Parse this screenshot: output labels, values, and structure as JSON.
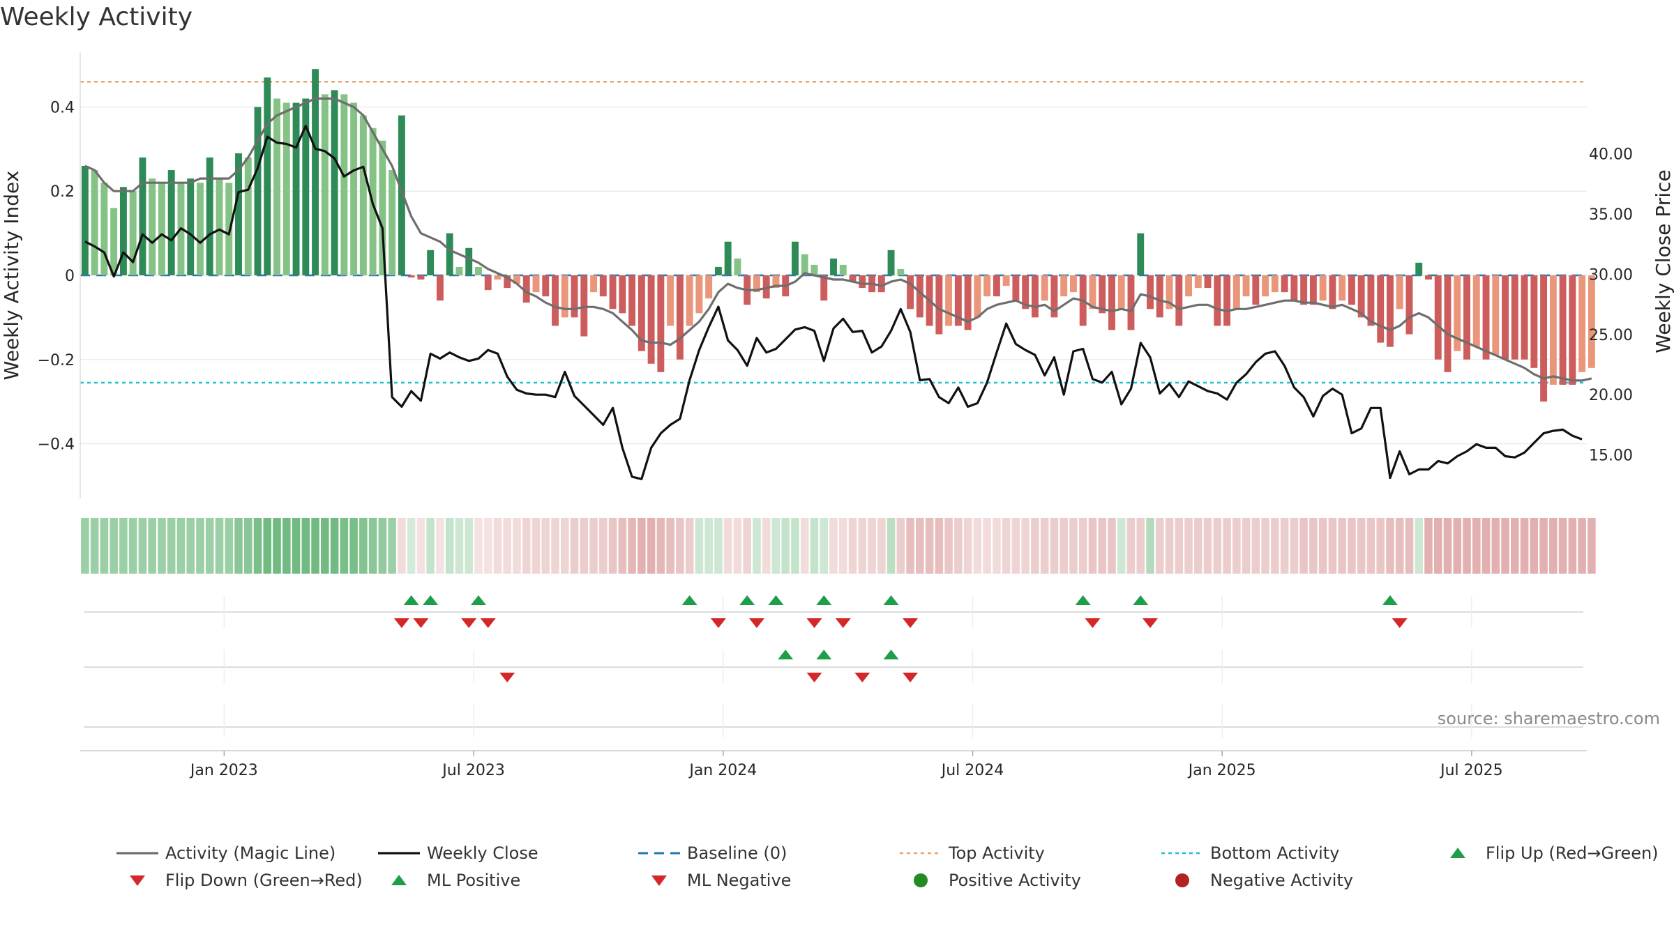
{
  "title": "Weekly Activity",
  "source": "source: sharemaestro.com",
  "colors": {
    "dark_green": "#2e8b57",
    "light_green": "#85c285",
    "dark_red": "#cd5c5c",
    "light_red": "#e9967a",
    "magic_line": "#6e6e6e",
    "close_line": "#111111",
    "baseline": "#1f77b4",
    "top_line": "#e3a56a",
    "bottom_line": "#19c4cf",
    "marker_up": "#1f9e4a",
    "marker_down": "#d62728",
    "pos_dot": "#228b22",
    "neg_dot": "#b22222"
  },
  "chart_data": {
    "type": "bar+line",
    "title": "Weekly Activity",
    "ylabel_left": "Weekly Activity Index",
    "ylabel_right": "Weekly Close Price",
    "ylim_left": [
      -0.53,
      0.53
    ],
    "ylim_right": [
      11.4,
      48.4
    ],
    "yticks_left": [
      "0.4",
      "0.2",
      "0",
      "−0.2",
      "−0.4"
    ],
    "yticks_left_values": [
      0.4,
      0.2,
      0,
      -0.2,
      -0.4
    ],
    "yticks_right": [
      "40.00",
      "35.00",
      "30.00",
      "25.00",
      "20.00",
      "15.00"
    ],
    "yticks_right_values": [
      40,
      35,
      30,
      25,
      20,
      15
    ],
    "xticks": [
      "Jan 2023",
      "Jul 2023",
      "Jan 2024",
      "Jul 2024",
      "Jan 2025",
      "Jul 2025"
    ],
    "xticks_week_index": [
      14.5,
      40.5,
      66.5,
      92.5,
      118.5,
      144.5
    ],
    "weeks_count": 157,
    "top_activity": 0.46,
    "bottom_activity": -0.255,
    "baseline": 0,
    "activity": [
      0.26,
      0.25,
      0.22,
      0.16,
      0.21,
      0.2,
      0.28,
      0.23,
      0.22,
      0.25,
      0.22,
      0.23,
      0.22,
      0.28,
      0.23,
      0.22,
      0.29,
      0.28,
      0.4,
      0.47,
      0.42,
      0.41,
      0.41,
      0.42,
      0.49,
      0.43,
      0.44,
      0.43,
      0.41,
      0.38,
      0.35,
      0.32,
      0.25,
      0.38,
      -0.005,
      -0.01,
      0.06,
      -0.06,
      0.1,
      0.02,
      0.065,
      0.02,
      -0.035,
      -0.01,
      -0.03,
      -0.02,
      -0.065,
      -0.04,
      -0.05,
      -0.12,
      -0.1,
      -0.1,
      -0.145,
      -0.04,
      -0.05,
      -0.08,
      -0.09,
      -0.12,
      -0.18,
      -0.21,
      -0.23,
      -0.12,
      -0.2,
      -0.12,
      -0.09,
      -0.055,
      0.02,
      0.08,
      0.04,
      -0.07,
      -0.04,
      -0.055,
      -0.03,
      -0.05,
      0.08,
      0.05,
      0.025,
      -0.06,
      0.04,
      0.025,
      -0.015,
      -0.03,
      -0.04,
      -0.04,
      0.06,
      0.015,
      -0.08,
      -0.1,
      -0.12,
      -0.14,
      -0.12,
      -0.12,
      -0.13,
      -0.1,
      -0.05,
      -0.05,
      -0.025,
      -0.06,
      -0.08,
      -0.1,
      -0.06,
      -0.1,
      -0.05,
      -0.04,
      -0.12,
      -0.08,
      -0.09,
      -0.13,
      -0.08,
      -0.13,
      0.1,
      -0.08,
      -0.1,
      -0.08,
      -0.12,
      -0.05,
      -0.03,
      -0.03,
      -0.12,
      -0.12,
      -0.08,
      -0.05,
      -0.07,
      -0.05,
      -0.04,
      -0.04,
      -0.06,
      -0.07,
      -0.07,
      -0.06,
      -0.08,
      -0.06,
      -0.07,
      -0.1,
      -0.12,
      -0.16,
      -0.17,
      -0.08,
      -0.14,
      0.03,
      -0.01,
      -0.2,
      -0.23,
      -0.18,
      -0.2,
      -0.17,
      -0.2,
      -0.19,
      -0.2,
      -0.2,
      -0.2,
      -0.22,
      -0.3,
      -0.26,
      -0.26,
      -0.26,
      -0.23,
      -0.22
    ],
    "magic_line": [
      0.26,
      0.25,
      0.22,
      0.2,
      0.2,
      0.2,
      0.22,
      0.22,
      0.22,
      0.22,
      0.22,
      0.22,
      0.23,
      0.23,
      0.23,
      0.23,
      0.25,
      0.28,
      0.32,
      0.36,
      0.38,
      0.39,
      0.4,
      0.41,
      0.42,
      0.42,
      0.42,
      0.41,
      0.4,
      0.38,
      0.34,
      0.3,
      0.26,
      0.2,
      0.14,
      0.1,
      0.09,
      0.08,
      0.06,
      0.05,
      0.04,
      0.03,
      0.015,
      0.005,
      -0.005,
      -0.02,
      -0.04,
      -0.05,
      -0.065,
      -0.075,
      -0.08,
      -0.08,
      -0.075,
      -0.075,
      -0.08,
      -0.09,
      -0.11,
      -0.13,
      -0.155,
      -0.16,
      -0.16,
      -0.165,
      -0.15,
      -0.13,
      -0.11,
      -0.08,
      -0.04,
      -0.02,
      -0.03,
      -0.035,
      -0.035,
      -0.03,
      -0.025,
      -0.025,
      -0.015,
      0.005,
      0.0,
      -0.005,
      -0.01,
      -0.01,
      -0.015,
      -0.02,
      -0.02,
      -0.025,
      -0.015,
      -0.01,
      -0.02,
      -0.04,
      -0.06,
      -0.08,
      -0.09,
      -0.1,
      -0.11,
      -0.1,
      -0.08,
      -0.07,
      -0.065,
      -0.06,
      -0.07,
      -0.075,
      -0.07,
      -0.085,
      -0.07,
      -0.055,
      -0.06,
      -0.075,
      -0.08,
      -0.085,
      -0.08,
      -0.085,
      -0.045,
      -0.05,
      -0.06,
      -0.065,
      -0.08,
      -0.075,
      -0.07,
      -0.07,
      -0.08,
      -0.085,
      -0.08,
      -0.08,
      -0.075,
      -0.07,
      -0.065,
      -0.06,
      -0.06,
      -0.065,
      -0.065,
      -0.07,
      -0.075,
      -0.07,
      -0.08,
      -0.09,
      -0.11,
      -0.12,
      -0.13,
      -0.12,
      -0.1,
      -0.09,
      -0.1,
      -0.12,
      -0.14,
      -0.15,
      -0.16,
      -0.17,
      -0.18,
      -0.19,
      -0.2,
      -0.21,
      -0.22,
      -0.235,
      -0.245,
      -0.24,
      -0.245,
      -0.25,
      -0.25,
      -0.245
    ],
    "weekly_close": [
      32.7,
      32.3,
      31.8,
      29.8,
      31.8,
      31.0,
      33.3,
      32.6,
      33.3,
      32.8,
      33.8,
      33.3,
      32.6,
      33.3,
      33.7,
      33.3,
      36.8,
      37.0,
      38.8,
      41.4,
      40.9,
      40.8,
      40.5,
      42.3,
      40.4,
      40.2,
      39.6,
      38.1,
      38.6,
      38.9,
      35.8,
      33.8,
      19.8,
      19.0,
      20.3,
      19.5,
      23.4,
      23.0,
      23.5,
      23.1,
      22.8,
      23.0,
      23.7,
      23.4,
      21.5,
      20.4,
      20.1,
      20.0,
      20.0,
      19.8,
      21.9,
      19.9,
      19.1,
      18.3,
      17.5,
      18.9,
      15.6,
      13.2,
      13.0,
      15.6,
      16.8,
      17.5,
      18.0,
      21.2,
      23.7,
      25.6,
      27.3,
      24.5,
      23.7,
      22.4,
      24.7,
      23.5,
      23.8,
      24.6,
      25.4,
      25.6,
      25.3,
      22.8,
      25.5,
      26.3,
      25.2,
      25.3,
      23.5,
      24.0,
      25.3,
      27.1,
      25.2,
      21.2,
      21.3,
      19.8,
      19.3,
      20.6,
      19.0,
      19.3,
      21.0,
      23.5,
      25.9,
      24.2,
      23.7,
      23.3,
      21.6,
      23.1,
      20.0,
      23.6,
      23.8,
      21.3,
      21.0,
      21.9,
      19.2,
      20.5,
      24.3,
      23.1,
      20.1,
      20.9,
      19.8,
      21.1,
      20.7,
      20.3,
      20.1,
      19.6,
      21.0,
      21.7,
      22.7,
      23.4,
      23.6,
      22.4,
      20.6,
      19.8,
      18.2,
      19.9,
      20.5,
      20.0,
      16.8,
      17.2,
      18.9,
      18.9,
      13.1,
      15.3,
      13.4,
      13.8,
      13.8,
      14.5,
      14.3,
      14.9,
      15.3,
      15.9,
      15.6,
      15.6,
      14.9,
      14.8,
      15.2,
      16.0,
      16.8,
      17.0,
      17.1,
      16.6,
      16.3
    ],
    "band_strength": [
      0.6,
      0.6,
      0.6,
      0.6,
      0.6,
      0.6,
      0.6,
      0.6,
      0.6,
      0.6,
      0.6,
      0.6,
      0.6,
      0.6,
      0.6,
      0.6,
      0.7,
      0.7,
      0.8,
      0.85,
      0.85,
      0.85,
      0.85,
      0.85,
      0.85,
      0.85,
      0.85,
      0.8,
      0.8,
      0.75,
      0.7,
      0.65,
      0.6,
      -0.25,
      0.25,
      -0.2,
      0.35,
      -0.2,
      0.35,
      0.3,
      0.3,
      -0.2,
      -0.2,
      -0.25,
      -0.25,
      -0.25,
      -0.3,
      -0.3,
      -0.3,
      -0.3,
      -0.3,
      -0.35,
      -0.35,
      -0.35,
      -0.35,
      -0.4,
      -0.45,
      -0.5,
      -0.55,
      -0.55,
      -0.5,
      -0.45,
      -0.4,
      -0.35,
      0.3,
      0.3,
      0.3,
      -0.25,
      -0.25,
      -0.3,
      0.3,
      -0.25,
      0.3,
      0.35,
      0.35,
      -0.25,
      0.35,
      0.3,
      -0.25,
      -0.25,
      -0.3,
      -0.3,
      -0.3,
      -0.3,
      0.4,
      -0.35,
      -0.45,
      -0.45,
      -0.45,
      -0.45,
      -0.4,
      -0.35,
      -0.3,
      -0.25,
      -0.25,
      -0.25,
      -0.3,
      -0.3,
      -0.3,
      -0.35,
      -0.35,
      -0.35,
      -0.35,
      -0.35,
      -0.35,
      -0.4,
      -0.4,
      -0.4,
      0.3,
      -0.35,
      -0.35,
      0.45,
      -0.35,
      -0.35,
      -0.35,
      -0.35,
      -0.35,
      -0.35,
      -0.35,
      -0.35,
      -0.35,
      -0.35,
      -0.35,
      -0.35,
      -0.35,
      -0.35,
      -0.35,
      -0.4,
      -0.4,
      -0.4,
      -0.4,
      -0.4,
      -0.4,
      -0.4,
      -0.4,
      -0.4,
      -0.45,
      -0.45,
      -0.45,
      0.3,
      -0.55,
      -0.55,
      -0.55,
      -0.55,
      -0.55,
      -0.55,
      -0.55,
      -0.55,
      -0.55,
      -0.55,
      -0.55,
      -0.55,
      -0.55,
      -0.55,
      -0.55,
      -0.55,
      -0.55,
      -0.55
    ],
    "flip_up_weeks": [
      34,
      36,
      41,
      63,
      69,
      72,
      77,
      84,
      104,
      110,
      136
    ],
    "flip_down_weeks": [
      33,
      35,
      40,
      42,
      66,
      70,
      76,
      79,
      86,
      105,
      111,
      137
    ],
    "ml_positive_weeks": [
      73,
      77,
      84
    ],
    "ml_negative_weeks": [
      44,
      76,
      81,
      86
    ],
    "legend": [
      {
        "label": "Activity (Magic Line)",
        "kind": "line",
        "color": "#6e6e6e"
      },
      {
        "label": "Weekly Close",
        "kind": "line",
        "color": "#111111"
      },
      {
        "label": "Baseline (0)",
        "kind": "dashed",
        "color": "#1f77b4"
      },
      {
        "label": "Top Activity",
        "kind": "dotted",
        "color": "#e3a56a"
      },
      {
        "label": "Bottom Activity",
        "kind": "dotted",
        "color": "#19c4cf"
      },
      {
        "label": "Flip Up (Red→Green)",
        "kind": "up",
        "color": "#1f9e4a"
      },
      {
        "label": "Flip Down (Green→Red)",
        "kind": "down",
        "color": "#d62728"
      },
      {
        "label": "ML Positive",
        "kind": "up",
        "color": "#1f9e4a"
      },
      {
        "label": "ML Negative",
        "kind": "down",
        "color": "#d62728"
      },
      {
        "label": "Positive Activity",
        "kind": "dot",
        "color": "#228b22"
      },
      {
        "label": "Negative Activity",
        "kind": "dot",
        "color": "#b22222"
      }
    ]
  }
}
